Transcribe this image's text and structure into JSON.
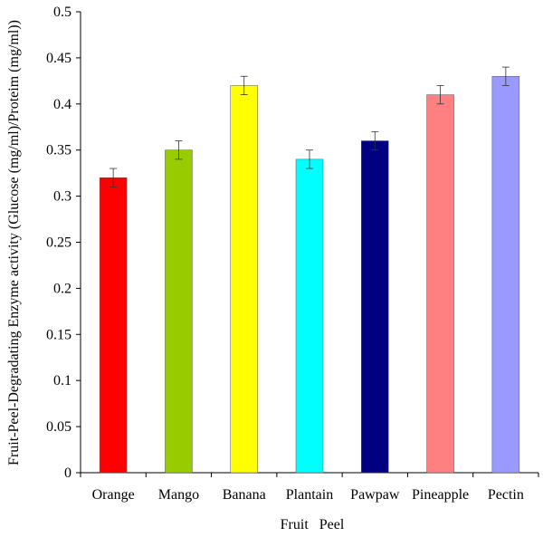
{
  "chart_data": {
    "type": "bar",
    "title": "",
    "xlabel": "Fruit   Peel",
    "ylabel": "Fruit-Peel-Degradating Enzyme activity (Glucose (mg/ml)/Proteim (mg/ml))",
    "ylim": [
      0,
      0.5
    ],
    "yticks": [
      "0",
      "0.05",
      "0.1",
      "0.15",
      "0.2",
      "0.25",
      "0.3",
      "0.35",
      "0.4",
      "0.45",
      "0.5"
    ],
    "categories": [
      "Orange",
      "Mango",
      "Banana",
      "Plantain",
      "Pawpaw",
      "Pineapple",
      "Pectin"
    ],
    "values": [
      0.32,
      0.35,
      0.42,
      0.34,
      0.36,
      0.41,
      0.43
    ],
    "errors": [
      0.01,
      0.01,
      0.01,
      0.01,
      0.01,
      0.01,
      0.01
    ],
    "colors": [
      "#ff0000",
      "#99cc00",
      "#ffff00",
      "#00ffff",
      "#000080",
      "#ff8080",
      "#9999ff"
    ],
    "grid": false,
    "legend": "none"
  }
}
